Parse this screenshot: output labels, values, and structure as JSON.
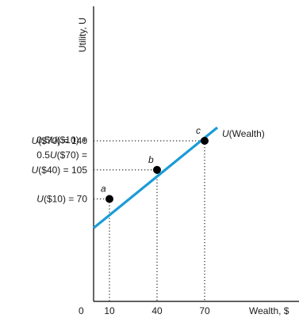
{
  "chart_data": {
    "type": "line",
    "xlabel": "Wealth, $",
    "ylabel": "Utility, U",
    "curve_label": "U(Wealth)",
    "origin_label": "0",
    "x_ticks": [
      "10",
      "40",
      "70"
    ],
    "series": [
      {
        "name": "U(Wealth)",
        "x": [
          0,
          78
        ],
        "y": [
          35,
          156
        ]
      }
    ],
    "points": [
      {
        "label": "a",
        "x": 10,
        "y": 70
      },
      {
        "label": "b",
        "x": 40,
        "y": 105
      },
      {
        "label": "c",
        "x": 70,
        "y": 140
      }
    ],
    "y_annotations": [
      {
        "lines": [
          "U($70) = 140"
        ],
        "y": 140
      },
      {
        "lines": [
          "0.5U($10) +",
          "0.5U($70) =",
          "U($40) = 105"
        ],
        "y": 105
      },
      {
        "lines": [
          "U($10) = 70"
        ],
        "y": 70
      }
    ],
    "line_color": "#1a9bd7",
    "point_color": "#000000",
    "grid": false
  }
}
